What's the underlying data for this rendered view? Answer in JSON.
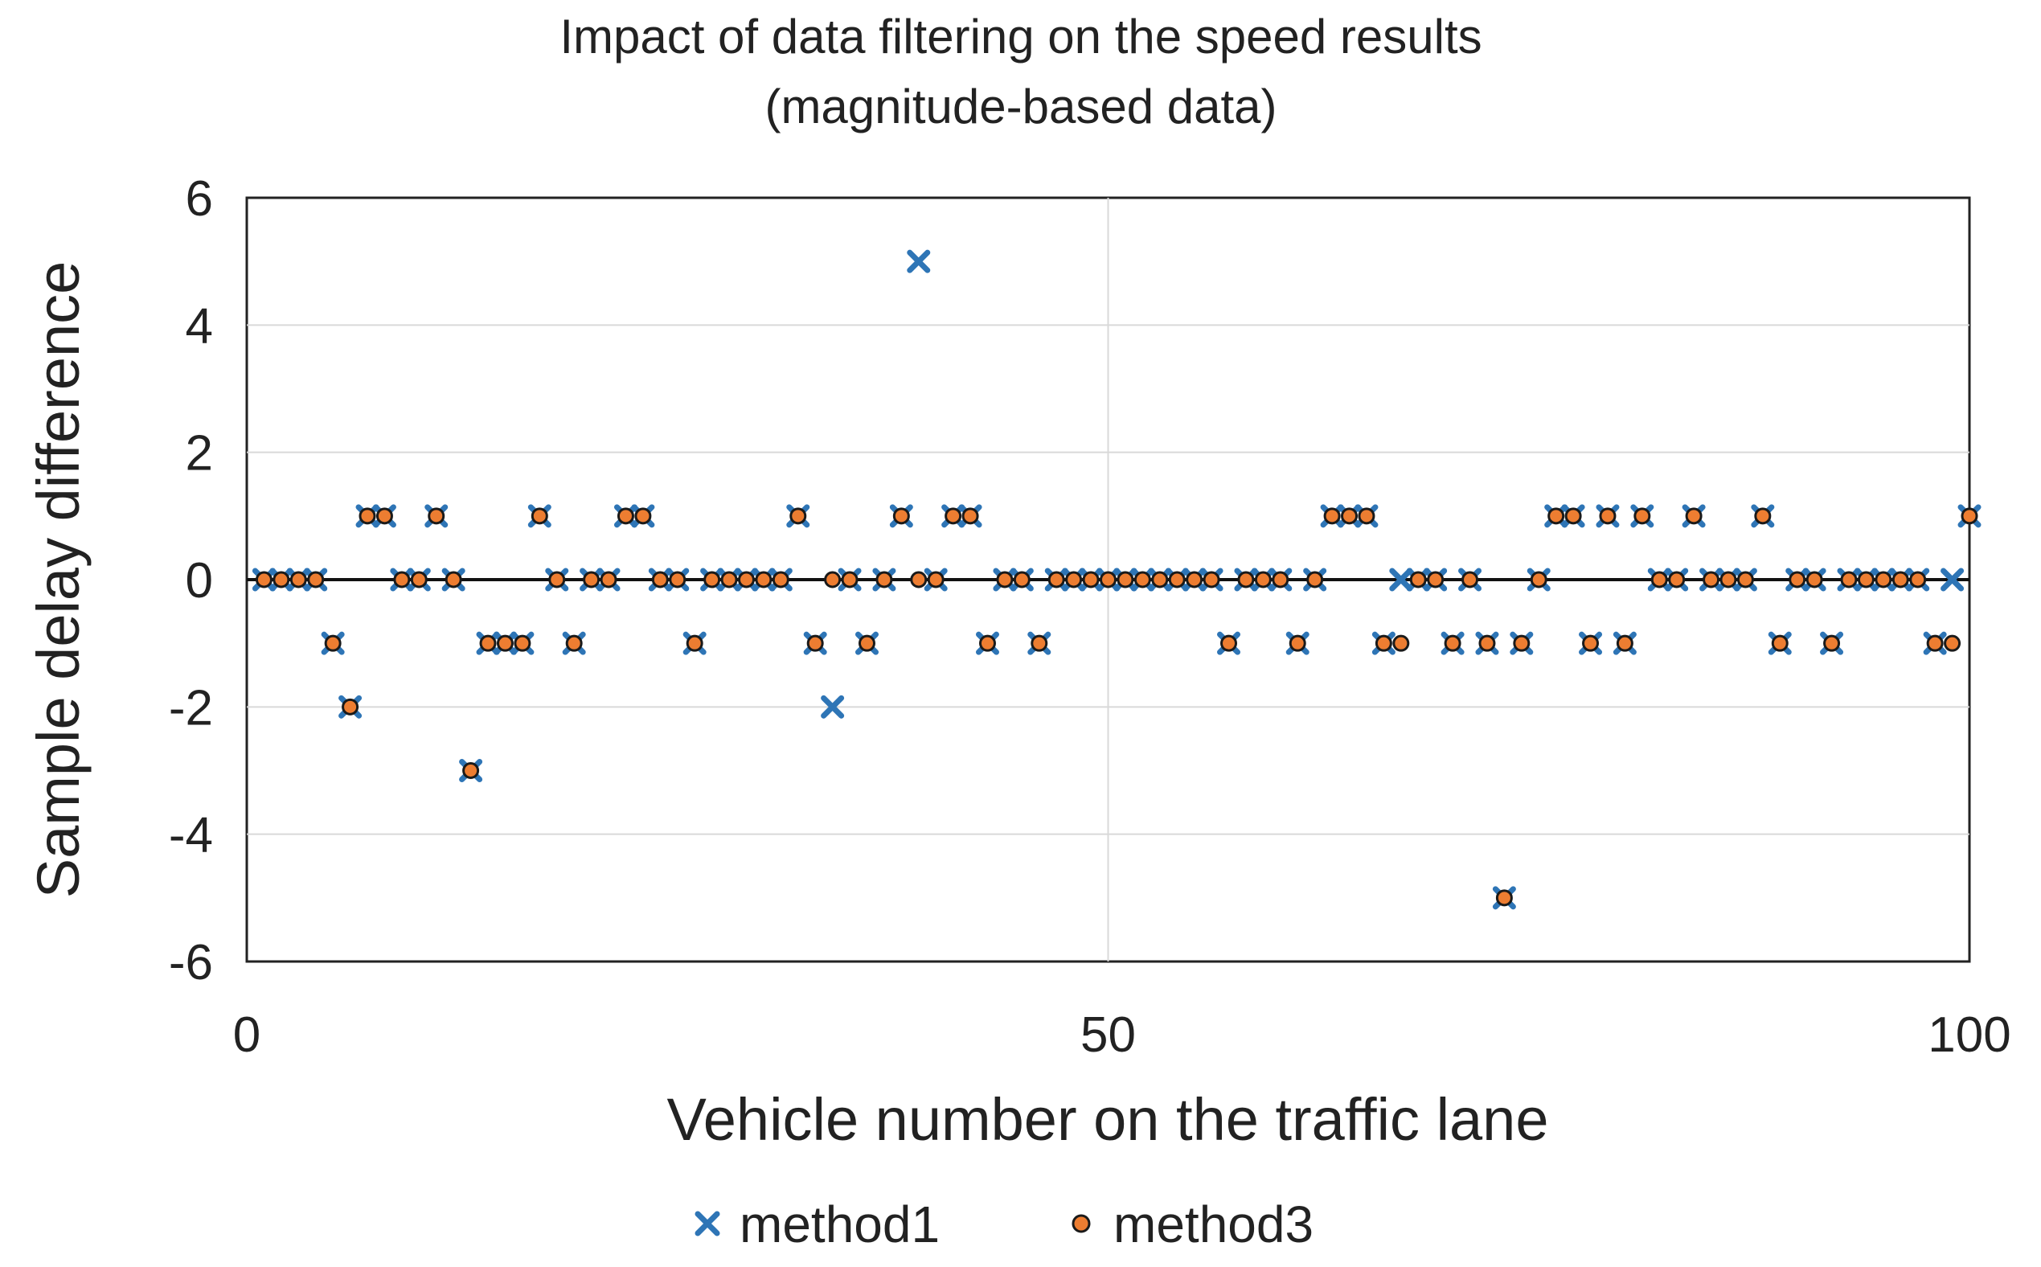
{
  "chart_data": {
    "type": "scatter",
    "title": "Impact of data filtering on the speed results",
    "subtitle": "(magnitude-based data)",
    "xlabel": "Vehicle number on the traffic lane",
    "ylabel": "Sample delay difference",
    "xlim": [
      0,
      100
    ],
    "ylim": [
      -6,
      6
    ],
    "xticks": [
      0,
      50,
      100
    ],
    "yticks": [
      6,
      4,
      2,
      0,
      -2,
      -4,
      -6
    ],
    "grid": true,
    "legend_position": "bottom",
    "x": [
      1,
      2,
      3,
      4,
      5,
      6,
      7,
      8,
      9,
      10,
      11,
      12,
      13,
      14,
      15,
      16,
      17,
      18,
      19,
      20,
      21,
      22,
      23,
      24,
      25,
      26,
      27,
      28,
      29,
      30,
      31,
      32,
      33,
      34,
      35,
      36,
      37,
      38,
      39,
      40,
      41,
      42,
      43,
      44,
      45,
      46,
      47,
      48,
      49,
      50,
      51,
      52,
      53,
      54,
      55,
      56,
      57,
      58,
      59,
      60,
      61,
      62,
      63,
      64,
      65,
      66,
      67,
      68,
      69,
      70,
      71,
      72,
      73,
      74,
      75,
      76,
      77,
      78,
      79,
      80,
      81,
      82,
      83,
      84,
      85,
      86,
      87,
      88,
      89,
      90,
      91,
      92,
      93,
      94,
      95,
      96,
      97,
      98,
      99,
      100
    ],
    "series": [
      {
        "name": "method1",
        "marker": "x",
        "color": "#2E75B6",
        "values": [
          0,
          0,
          0,
          0,
          -1,
          -2,
          1,
          1,
          0,
          0,
          1,
          0,
          -3,
          -1,
          -1,
          -1,
          1,
          0,
          -1,
          0,
          0,
          1,
          1,
          0,
          0,
          -1,
          0,
          0,
          0,
          0,
          0,
          1,
          -1,
          -2,
          0,
          -1,
          0,
          1,
          5,
          0,
          1,
          1,
          -1,
          0,
          0,
          -1,
          0,
          0,
          0,
          0,
          0,
          0,
          0,
          0,
          0,
          0,
          -1,
          0,
          0,
          0,
          -1,
          0,
          1,
          1,
          1,
          -1,
          0,
          0,
          0,
          -1,
          0,
          -1,
          -5,
          -1,
          0,
          1,
          1,
          -1,
          1,
          -1,
          1,
          0,
          0,
          1,
          0,
          0,
          0,
          1,
          -1,
          0,
          0,
          -1,
          0,
          0,
          0,
          0,
          0,
          -1,
          0,
          1
        ]
      },
      {
        "name": "method3",
        "marker": "circle",
        "color": "#ED7D31",
        "values": [
          0,
          0,
          0,
          0,
          -1,
          -2,
          1,
          1,
          0,
          0,
          1,
          0,
          -3,
          -1,
          -1,
          -1,
          1,
          0,
          -1,
          0,
          0,
          1,
          1,
          0,
          0,
          -1,
          0,
          0,
          0,
          0,
          0,
          1,
          -1,
          0,
          0,
          -1,
          0,
          1,
          0,
          0,
          1,
          1,
          -1,
          0,
          0,
          -1,
          0,
          0,
          0,
          0,
          0,
          0,
          0,
          0,
          0,
          0,
          -1,
          0,
          0,
          0,
          -1,
          0,
          1,
          1,
          1,
          -1,
          -1,
          0,
          0,
          -1,
          0,
          -1,
          -5,
          -1,
          0,
          1,
          1,
          -1,
          1,
          -1,
          1,
          0,
          0,
          1,
          0,
          0,
          0,
          1,
          -1,
          0,
          0,
          -1,
          0,
          0,
          0,
          0,
          0,
          -1,
          -1,
          1
        ]
      }
    ]
  }
}
